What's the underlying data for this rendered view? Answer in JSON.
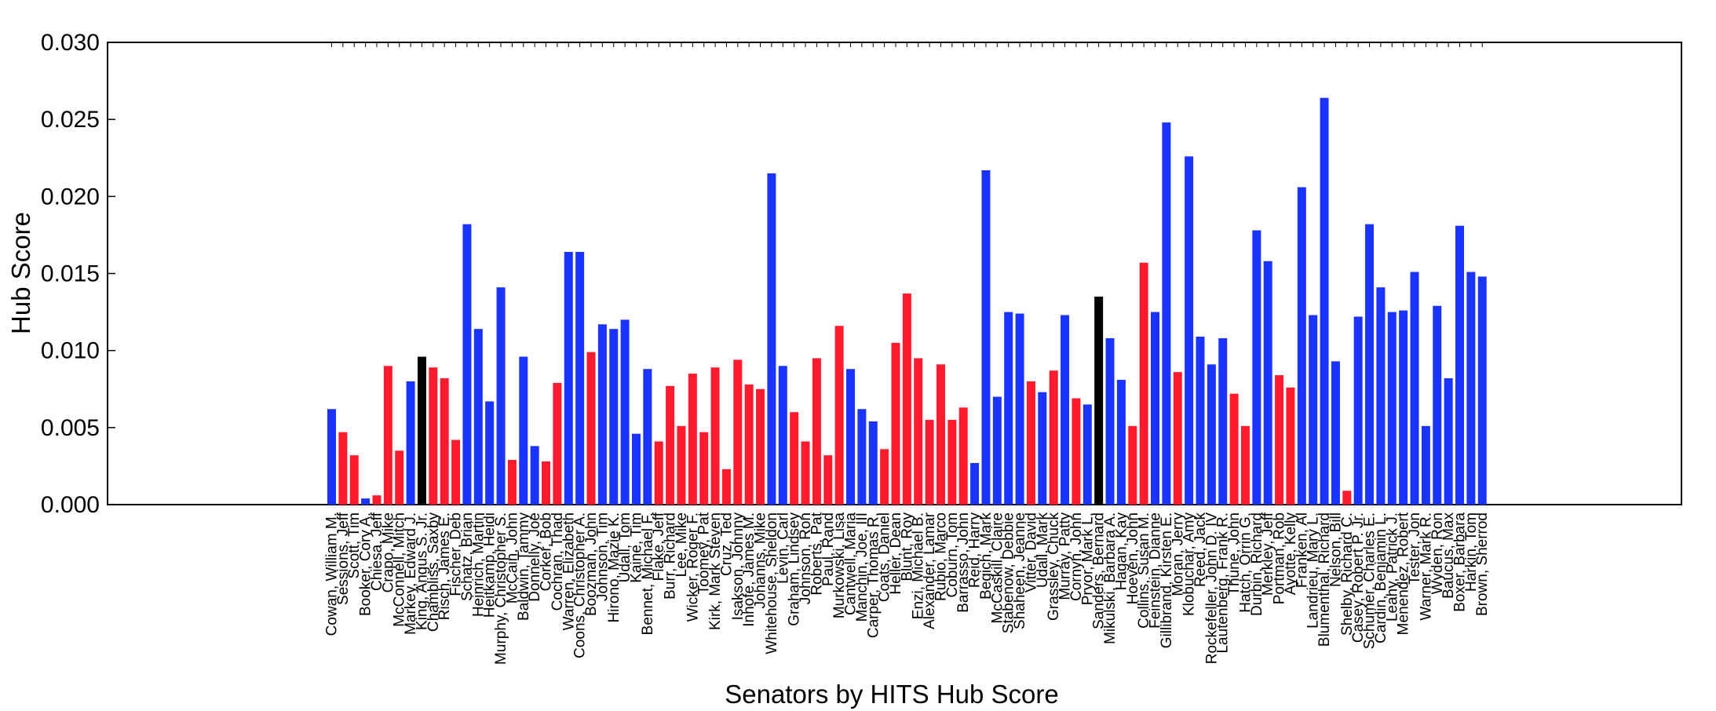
{
  "chart_data": {
    "type": "bar",
    "title": "",
    "xlabel": "Senators by HITS Hub Score",
    "ylabel": "Hub Score",
    "ylim": [
      0,
      0.03
    ],
    "yticks": [
      "0.000",
      "0.005",
      "0.010",
      "0.015",
      "0.020",
      "0.025",
      "0.030"
    ],
    "grid": false,
    "legend": "none",
    "colors": {
      "blue": "#1a33ff",
      "red": "#ff1a2e",
      "black": "#000000"
    },
    "categories": [
      "Cowan, William M.",
      "Sessions, Jeff",
      "Scott, Tim",
      "Booker, Cory A.",
      "Chiesa, Jeff",
      "Crapo, Mike",
      "McConnell, Mitch",
      "Markey, Edward J.",
      "King, Angus S. Jr.",
      "Chambliss, Saxby",
      "Risch, James E.",
      "Fischer, Deb",
      "Schatz, Brian",
      "Heinrich, Martin",
      "Heitkamp, Heidi",
      "Murphy, Christopher S.",
      "McCain, John",
      "Baldwin, Tammy",
      "Donnelly, Joe",
      "Corker, Bob",
      "Cochran, Thad",
      "Warren, Elizabeth",
      "Coons, Christopher A.",
      "Boozman, John",
      "Johnson, Tim",
      "Hirono, Mazie K.",
      "Udall, Tom",
      "Kaine, Tim",
      "Bennet, Michael F.",
      "Flake, Jeff",
      "Burr, Richard",
      "Lee, Mike",
      "Wicker, Roger F.",
      "Toomey, Pat",
      "Kirk, Mark Steven",
      "Cruz, Ted",
      "Isakson, Johnny",
      "Inhofe, James M.",
      "Johanns, Mike",
      "Whitehouse, Sheldon",
      "Levin, Carl",
      "Graham, Lindsey",
      "Johnson, Ron",
      "Roberts, Pat",
      "Paul, Rand",
      "Murkowski, Lisa",
      "Cantwell, Maria",
      "Manchin, Joe, III",
      "Carper, Thomas R.",
      "Coats, Daniel",
      "Heller, Dean",
      "Blunt, Roy",
      "Enzi, Michael B.",
      "Alexander, Lamar",
      "Rubio, Marco",
      "Coburn, Tom",
      "Barrasso, John",
      "Reid, Harry",
      "Begich, Mark",
      "McCaskill, Claire",
      "Stabenow, Debbie",
      "Shaheen, Jeanne",
      "Vitter, David",
      "Udall, Mark",
      "Grassley, Chuck",
      "Murray, Patty",
      "Cornyn, John",
      "Pryor, Mark L.",
      "Sanders, Bernard",
      "Mikulski, Barbara A.",
      "Hagan, Kay",
      "Hoeven, John",
      "Collins, Susan M.",
      "Feinstein, Dianne",
      "Gillibrand, Kirsten E.",
      "Moran, Jerry",
      "Klobuchar, Amy",
      "Reed, Jack",
      "Rockefeller, John D. IV",
      "Lautenberg, Frank R.",
      "Thune, John",
      "Hatch, Orrin G.",
      "Durbin, Richard",
      "Merkley, Jeff",
      "Portman, Rob",
      "Ayotte, Kelly",
      "Franken, Al",
      "Landrieu, Mary L.",
      "Blumenthal, Richard",
      "Nelson, Bill",
      "Shelby, Richard C.",
      "Casey, Robert P. Jr.",
      "Schumer, Charles E.",
      "Cardin, Benjamin L.",
      "Leahy, Patrick J.",
      "Menendez, Robert",
      "Tester, Jon",
      "Warner, Mark R.",
      "Wyden, Ron",
      "Baucus, Max",
      "Boxer, Barbara",
      "Harkin, Tom",
      "Brown, Sherrod"
    ],
    "values": [
      0.0062,
      0.0047,
      0.0032,
      0.0004,
      0.0006,
      0.009,
      0.0035,
      0.008,
      0.0096,
      0.0089,
      0.0082,
      0.0042,
      0.0182,
      0.0114,
      0.0067,
      0.0141,
      0.0029,
      0.0096,
      0.0038,
      0.0028,
      0.0079,
      0.0164,
      0.0164,
      0.0099,
      0.0117,
      0.0114,
      0.012,
      0.0046,
      0.0088,
      0.0041,
      0.0077,
      0.0051,
      0.0085,
      0.0047,
      0.0089,
      0.0023,
      0.0094,
      0.0078,
      0.0075,
      0.0215,
      0.009,
      0.006,
      0.0041,
      0.0095,
      0.0032,
      0.0116,
      0.0088,
      0.0062,
      0.0054,
      0.0036,
      0.0105,
      0.0137,
      0.0095,
      0.0055,
      0.0091,
      0.0055,
      0.0063,
      0.0027,
      0.0217,
      0.007,
      0.0125,
      0.0124,
      0.008,
      0.0073,
      0.0087,
      0.0123,
      0.0069,
      0.0065,
      0.0135,
      0.0108,
      0.0081,
      0.0051,
      0.0157,
      0.0125,
      0.0248,
      0.0086,
      0.0226,
      0.0109,
      0.0091,
      0.0108,
      0.0072,
      0.0051,
      0.0178,
      0.0158,
      0.0084,
      0.0076,
      0.0206,
      0.0123,
      0.0264,
      0.0093,
      0.0009,
      0.0122,
      0.0182,
      0.0141,
      0.0125,
      0.0126,
      0.0151,
      0.0051,
      0.0129,
      0.0082,
      0.0181,
      0.0151,
      0.0148
    ],
    "bar_colors": [
      "blue",
      "red",
      "red",
      "blue",
      "red",
      "red",
      "red",
      "blue",
      "black",
      "red",
      "red",
      "red",
      "blue",
      "blue",
      "blue",
      "blue",
      "red",
      "blue",
      "blue",
      "red",
      "red",
      "blue",
      "blue",
      "red",
      "blue",
      "blue",
      "blue",
      "blue",
      "blue",
      "red",
      "red",
      "red",
      "red",
      "red",
      "red",
      "red",
      "red",
      "red",
      "red",
      "blue",
      "blue",
      "red",
      "red",
      "red",
      "red",
      "red",
      "blue",
      "blue",
      "blue",
      "red",
      "red",
      "red",
      "red",
      "red",
      "red",
      "red",
      "red",
      "blue",
      "blue",
      "blue",
      "blue",
      "blue",
      "red",
      "blue",
      "red",
      "blue",
      "red",
      "blue",
      "black",
      "blue",
      "blue",
      "red",
      "red",
      "blue",
      "blue",
      "red",
      "blue",
      "blue",
      "blue",
      "blue",
      "red",
      "red",
      "blue",
      "blue",
      "red",
      "red",
      "blue",
      "blue",
      "blue",
      "blue",
      "red",
      "blue",
      "blue",
      "blue",
      "blue",
      "blue",
      "blue",
      "blue",
      "blue",
      "blue",
      "blue",
      "blue",
      "blue"
    ]
  }
}
